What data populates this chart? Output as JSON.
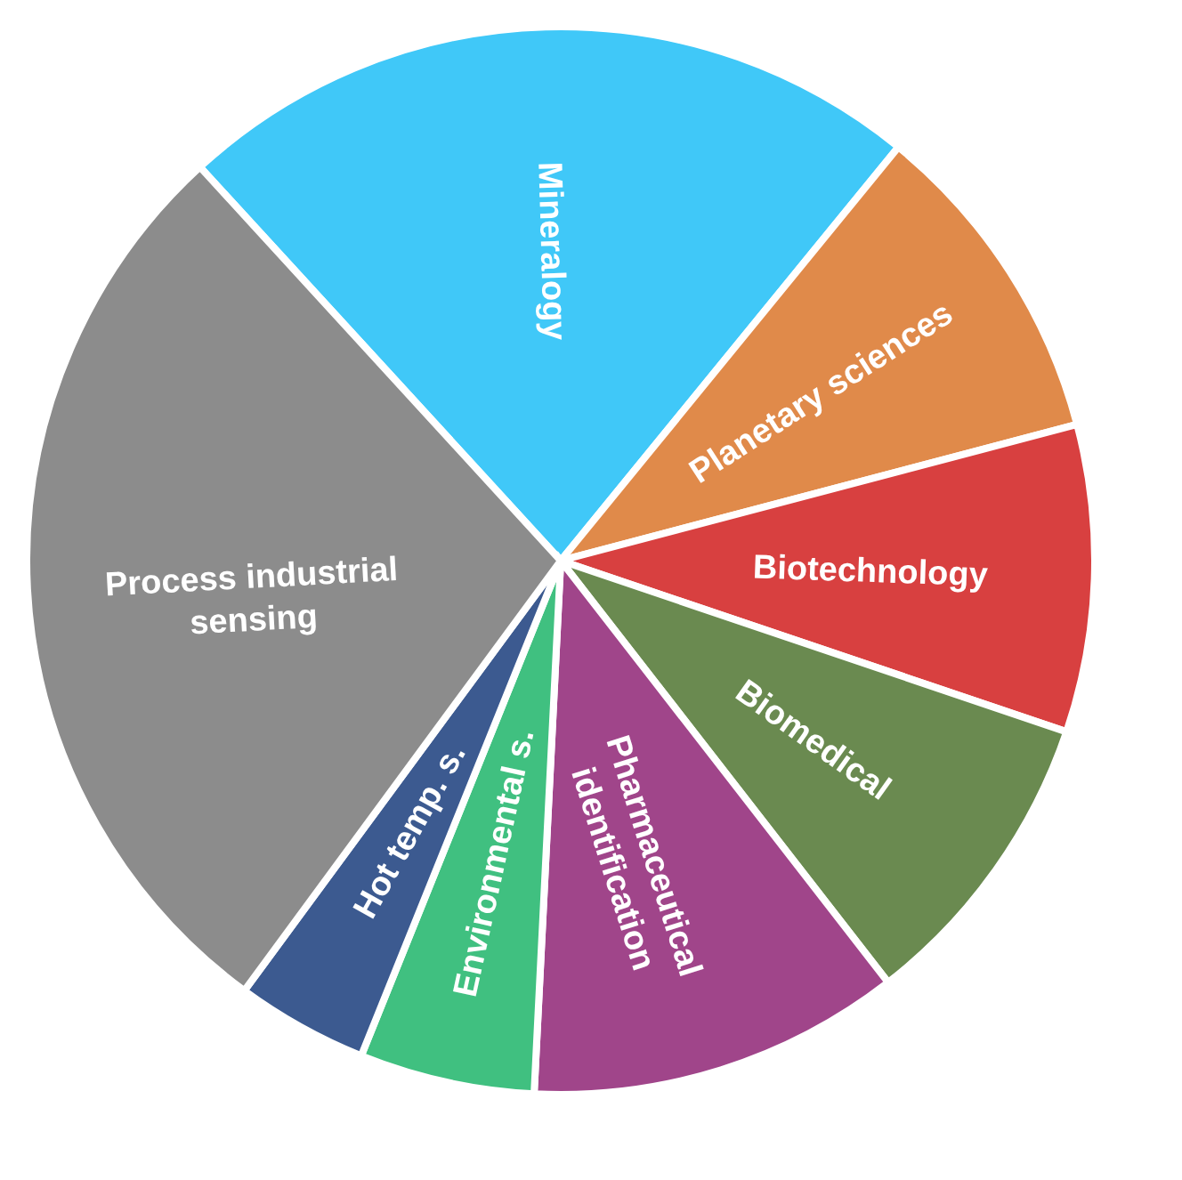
{
  "chart_data": {
    "type": "pie",
    "categories": [
      "Mineralogy",
      "Planetary sciences",
      "Biotechnology",
      "Biomedical",
      "Pharmaceutical identification",
      "Environmental s.",
      "Hot temp. s.",
      "Process industrial sensing"
    ],
    "values": [
      22.7,
      10.0,
      9.3,
      9.3,
      11.3,
      5.3,
      4.0,
      28.1
    ],
    "colors": [
      "#40c8f8",
      "#e08a4a",
      "#d84040",
      "#6a8a50",
      "#a0458a",
      "#40c080",
      "#3c5a90",
      "#8c8c8c"
    ],
    "legend": false
  }
}
